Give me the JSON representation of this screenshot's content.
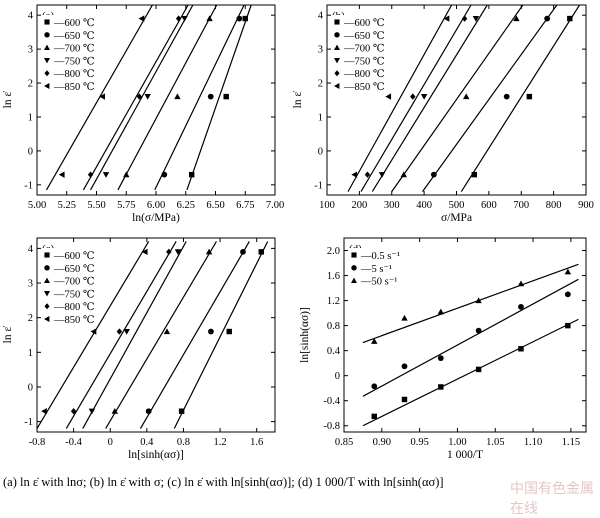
{
  "caption": "(a) ln ε̇  with lnσ; (b) ln ε̇  with σ; (c) ln ε̇  with  ln[sinh(ασ)]; (d) 1 000/T with  ln[sinh(ασ)]",
  "watermark": "中国有色金属在线",
  "chart_data": [
    {
      "type": "scatter",
      "panel": "(a)",
      "xlabel": "ln(σ/MPa)",
      "ylabel": "ln ε̇",
      "xlim": [
        5.0,
        7.0
      ],
      "ylim": [
        -1.3,
        4.3
      ],
      "xticks": [
        "5.00",
        "5.25",
        "5.50",
        "5.75",
        "6.00",
        "6.25",
        "6.50",
        "6.75",
        "7.00"
      ],
      "yticks": [
        "-1",
        "0",
        "1",
        "2",
        "3",
        "4"
      ],
      "legend_position": "top-left",
      "series": [
        {
          "name": "600 ℃",
          "marker": "square",
          "x": [
            6.3,
            6.59,
            6.75
          ],
          "y": [
            -0.7,
            1.6,
            3.9
          ]
        },
        {
          "name": "650 ℃",
          "marker": "circle",
          "x": [
            6.07,
            6.46,
            6.7
          ],
          "y": [
            -0.7,
            1.6,
            3.9
          ]
        },
        {
          "name": "700 ℃",
          "marker": "triangle-up",
          "x": [
            5.75,
            6.18,
            6.45
          ],
          "y": [
            -0.7,
            1.6,
            3.9
          ]
        },
        {
          "name": "750 ℃",
          "marker": "triangle-down",
          "x": [
            5.58,
            5.93,
            6.24
          ],
          "y": [
            -0.7,
            1.6,
            3.9
          ]
        },
        {
          "name": "800 ℃",
          "marker": "diamond",
          "x": [
            5.45,
            5.86,
            6.19
          ],
          "y": [
            -0.7,
            1.6,
            3.9
          ]
        },
        {
          "name": "850 ℃",
          "marker": "triangle-left",
          "x": [
            5.21,
            5.55,
            5.88
          ],
          "y": [
            -0.7,
            1.6,
            3.9
          ]
        }
      ],
      "fit_lines": [
        {
          "series": "600 ℃",
          "x": [
            6.26,
            6.8
          ],
          "y": [
            -1.15,
            4.3
          ]
        },
        {
          "series": "650 ℃",
          "x": [
            5.99,
            6.74
          ],
          "y": [
            -1.15,
            4.3
          ]
        },
        {
          "series": "700 ℃",
          "x": [
            5.68,
            6.51
          ],
          "y": [
            -1.15,
            4.3
          ]
        },
        {
          "series": "750 ℃",
          "x": [
            5.45,
            6.31
          ],
          "y": [
            -1.15,
            4.3
          ]
        },
        {
          "series": "800 ℃",
          "x": [
            5.39,
            6.27
          ],
          "y": [
            -1.15,
            4.3
          ]
        },
        {
          "series": "850 ℃",
          "x": [
            5.08,
            5.97
          ],
          "y": [
            -1.15,
            4.3
          ]
        }
      ]
    },
    {
      "type": "scatter",
      "panel": "(b)",
      "xlabel": "σ/MPa",
      "ylabel": "ln ε̇",
      "xlim": [
        100,
        900
      ],
      "ylim": [
        -1.3,
        4.3
      ],
      "xticks": [
        "100",
        "200",
        "300",
        "400",
        "500",
        "600",
        "700",
        "800",
        "900"
      ],
      "yticks": [
        "-1",
        "0",
        "1",
        "2",
        "3",
        "4"
      ],
      "legend_position": "top-left",
      "series": [
        {
          "name": "600 ℃",
          "marker": "square",
          "x": [
            555,
            725,
            850
          ],
          "y": [
            -0.7,
            1.6,
            3.9
          ]
        },
        {
          "name": "650 ℃",
          "marker": "circle",
          "x": [
            430,
            655,
            780
          ],
          "y": [
            -0.7,
            1.6,
            3.9
          ]
        },
        {
          "name": "700 ℃",
          "marker": "triangle-up",
          "x": [
            337,
            530,
            685
          ],
          "y": [
            -0.7,
            1.6,
            3.9
          ]
        },
        {
          "name": "750 ℃",
          "marker": "triangle-down",
          "x": [
            270,
            400,
            560
          ],
          "y": [
            -0.7,
            1.6,
            3.9
          ]
        },
        {
          "name": "800 ℃",
          "marker": "diamond",
          "x": [
            225,
            365,
            525
          ],
          "y": [
            -0.7,
            1.6,
            3.9
          ]
        },
        {
          "name": "850 ℃",
          "marker": "triangle-left",
          "x": [
            185,
            290,
            470
          ],
          "y": [
            -0.7,
            1.6,
            3.9
          ]
        }
      ],
      "fit_lines": [
        {
          "series": "600 ℃",
          "x": [
            515,
            880
          ],
          "y": [
            -1.2,
            4.3
          ]
        },
        {
          "series": "650 ℃",
          "x": [
            395,
            810
          ],
          "y": [
            -1.2,
            4.3
          ]
        },
        {
          "series": "700 ℃",
          "x": [
            300,
            705
          ],
          "y": [
            -1.2,
            4.3
          ]
        },
        {
          "series": "750 ℃",
          "x": [
            240,
            595
          ],
          "y": [
            -1.2,
            4.3
          ]
        },
        {
          "series": "800 ℃",
          "x": [
            205,
            545
          ],
          "y": [
            -1.2,
            4.3
          ]
        },
        {
          "series": "850 ℃",
          "x": [
            165,
            485
          ],
          "y": [
            -1.2,
            4.3
          ]
        }
      ]
    },
    {
      "type": "scatter",
      "panel": "(c)",
      "xlabel": "ln[sinh(ασ)]",
      "ylabel": "ln ε̇",
      "xlim": [
        -0.8,
        1.8
      ],
      "ylim": [
        -1.3,
        4.3
      ],
      "xticks": [
        "-0.8",
        "-0.4",
        "0",
        "0.4",
        "0.8",
        "1.2",
        "1.6"
      ],
      "yticks": [
        "-1",
        "0",
        "1",
        "2",
        "3",
        "4"
      ],
      "legend_position": "top-left",
      "series": [
        {
          "name": "600 ℃",
          "marker": "square",
          "x": [
            0.78,
            1.3,
            1.65
          ],
          "y": [
            -0.7,
            1.6,
            3.9
          ]
        },
        {
          "name": "650 ℃",
          "marker": "circle",
          "x": [
            0.42,
            1.1,
            1.45
          ],
          "y": [
            -0.7,
            1.6,
            3.9
          ]
        },
        {
          "name": "700 ℃",
          "marker": "triangle-up",
          "x": [
            0.05,
            0.62,
            1.08
          ],
          "y": [
            -0.7,
            1.6,
            3.9
          ]
        },
        {
          "name": "750 ℃",
          "marker": "triangle-down",
          "x": [
            -0.2,
            0.18,
            0.74
          ],
          "y": [
            -0.7,
            1.6,
            3.9
          ]
        },
        {
          "name": "800 ℃",
          "marker": "diamond",
          "x": [
            -0.4,
            0.1,
            0.64
          ],
          "y": [
            -0.7,
            1.6,
            3.9
          ]
        },
        {
          "name": "850 ℃",
          "marker": "triangle-left",
          "x": [
            -0.72,
            -0.18,
            0.38
          ],
          "y": [
            -0.7,
            1.6,
            3.9
          ]
        }
      ],
      "fit_lines": [
        {
          "series": "600 ℃",
          "x": [
            0.7,
            1.72
          ],
          "y": [
            -1.2,
            4.2
          ]
        },
        {
          "series": "650 ℃",
          "x": [
            0.33,
            1.52
          ],
          "y": [
            -1.2,
            4.2
          ]
        },
        {
          "series": "700 ℃",
          "x": [
            -0.05,
            1.16
          ],
          "y": [
            -1.2,
            4.2
          ]
        },
        {
          "series": "750 ℃",
          "x": [
            -0.3,
            0.83
          ],
          "y": [
            -1.2,
            4.2
          ]
        },
        {
          "series": "800 ℃",
          "x": [
            -0.48,
            0.72
          ],
          "y": [
            -1.2,
            4.2
          ]
        },
        {
          "series": "850 ℃",
          "x": [
            -0.8,
            0.42
          ],
          "y": [
            -1.2,
            4.2
          ]
        }
      ]
    },
    {
      "type": "scatter",
      "panel": "(d)",
      "xlabel": "1 000/T",
      "ylabel": "ln[sinh(ασ)]",
      "xlim": [
        0.85,
        1.17
      ],
      "ylim": [
        -0.9,
        2.2
      ],
      "xticks": [
        "0.85",
        "0.90",
        "0.95",
        "1.00",
        "1.05",
        "1.10",
        "1.15"
      ],
      "yticks": [
        "-0.8",
        "-0.4",
        "0",
        "0.4",
        "0.8",
        "1.2",
        "1.6",
        "2.0"
      ],
      "legend_position": "top-left",
      "series": [
        {
          "name": "0.5 s⁻¹",
          "marker": "square",
          "x": [
            0.89,
            0.93,
            0.978,
            1.028,
            1.084,
            1.146
          ],
          "y": [
            -0.65,
            -0.38,
            -0.18,
            0.1,
            0.43,
            0.8
          ]
        },
        {
          "name": "5 s⁻¹",
          "marker": "circle",
          "x": [
            0.89,
            0.93,
            0.978,
            1.028,
            1.084,
            1.146
          ],
          "y": [
            -0.17,
            0.15,
            0.28,
            0.72,
            1.1,
            1.3
          ]
        },
        {
          "name": "50 s⁻¹",
          "marker": "triangle-up",
          "x": [
            0.89,
            0.93,
            0.978,
            1.028,
            1.084,
            1.146
          ],
          "y": [
            0.55,
            0.92,
            1.02,
            1.2,
            1.47,
            1.66
          ]
        }
      ],
      "fit_lines": [
        {
          "series": "0.5 s⁻¹",
          "x": [
            0.875,
            1.16
          ],
          "y": [
            -0.8,
            0.9
          ]
        },
        {
          "series": "5 s⁻¹",
          "x": [
            0.875,
            1.16
          ],
          "y": [
            -0.33,
            1.54
          ]
        },
        {
          "series": "50 s⁻¹",
          "x": [
            0.875,
            1.16
          ],
          "y": [
            0.53,
            1.78
          ]
        }
      ]
    }
  ]
}
